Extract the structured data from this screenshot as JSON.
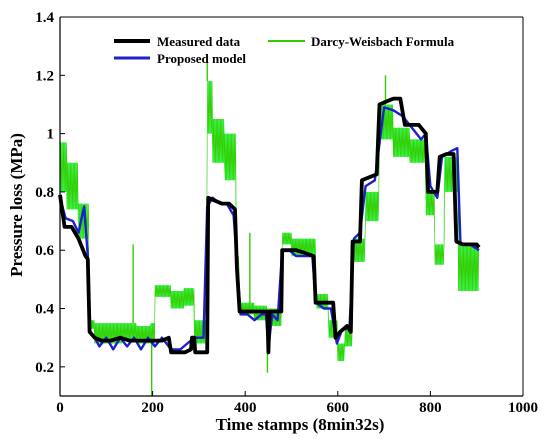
{
  "chart_data": {
    "type": "line",
    "xlabel": "Time stamps (8min32s)",
    "ylabel": "Pressure loss (MPa)",
    "xlim": [
      0,
      1000
    ],
    "ylim": [
      0.1,
      1.4
    ],
    "xticks": [
      0,
      200,
      400,
      600,
      800,
      1000
    ],
    "yticks": [
      0.2,
      0.4,
      0.6,
      0.8,
      1,
      1.2,
      1.4
    ],
    "grid": false,
    "legend_position": "top-center",
    "series": [
      {
        "name": "Darcy-Weisbach Formula",
        "color": "#33cc00",
        "band_color": "#00ff33",
        "steps": [
          [
            0,
            0.97,
            0.8
          ],
          [
            15,
            0.9,
            0.74
          ],
          [
            40,
            0.76,
            0.64
          ],
          [
            62,
            0.36,
            0.33
          ],
          [
            75,
            0.35,
            0.28
          ],
          [
            100,
            0.35,
            0.28
          ],
          [
            135,
            0.35,
            0.29
          ],
          [
            165,
            0.34,
            0.28
          ],
          [
            195,
            0.35,
            0.28
          ],
          [
            205,
            0.48,
            0.44
          ],
          [
            240,
            0.46,
            0.4
          ],
          [
            268,
            0.47,
            0.41
          ],
          [
            290,
            0.36,
            0.28
          ],
          [
            318,
            1.18,
            1.0
          ],
          [
            330,
            1.05,
            0.9
          ],
          [
            355,
            1.0,
            0.84
          ],
          [
            380,
            0.58,
            0.52
          ],
          [
            388,
            0.42,
            0.38
          ],
          [
            420,
            0.41,
            0.36
          ],
          [
            448,
            0.4,
            0.37
          ],
          [
            458,
            0.4,
            0.34
          ],
          [
            480,
            0.66,
            0.62
          ],
          [
            500,
            0.64,
            0.58
          ],
          [
            530,
            0.64,
            0.58
          ],
          [
            553,
            0.45,
            0.4
          ],
          [
            580,
            0.36,
            0.3
          ],
          [
            600,
            0.28,
            0.22
          ],
          [
            615,
            0.34,
            0.27
          ],
          [
            632,
            0.64,
            0.56
          ],
          [
            660,
            0.8,
            0.7
          ],
          [
            690,
            1.1,
            0.98
          ],
          [
            720,
            1.02,
            0.92
          ],
          [
            755,
            0.98,
            0.9
          ],
          [
            790,
            0.8,
            0.72
          ],
          [
            810,
            0.62,
            0.55
          ],
          [
            830,
            0.92,
            0.8
          ],
          [
            860,
            0.62,
            0.46
          ],
          [
            905,
            0.62,
            0.46
          ]
        ],
        "spikes": [
          [
            158,
            0.62
          ],
          [
            198,
            0.1
          ],
          [
            318,
            1.27
          ],
          [
            410,
            0.66
          ],
          [
            448,
            0.18
          ],
          [
            703,
            1.2
          ]
        ]
      },
      {
        "name": "Proposed model",
        "color": "#1f1fcc",
        "points": [
          [
            0,
            0.78
          ],
          [
            12,
            0.71
          ],
          [
            28,
            0.7
          ],
          [
            40,
            0.66
          ],
          [
            52,
            0.75
          ],
          [
            60,
            0.58
          ],
          [
            63,
            0.32
          ],
          [
            75,
            0.3
          ],
          [
            85,
            0.27
          ],
          [
            100,
            0.3
          ],
          [
            115,
            0.26
          ],
          [
            130,
            0.3
          ],
          [
            145,
            0.27
          ],
          [
            160,
            0.3
          ],
          [
            175,
            0.26
          ],
          [
            190,
            0.3
          ],
          [
            205,
            0.27
          ],
          [
            220,
            0.3
          ],
          [
            240,
            0.26
          ],
          [
            260,
            0.26
          ],
          [
            275,
            0.28
          ],
          [
            290,
            0.3
          ],
          [
            310,
            0.3
          ],
          [
            318,
            0.75
          ],
          [
            330,
            0.78
          ],
          [
            345,
            0.76
          ],
          [
            360,
            0.76
          ],
          [
            375,
            0.72
          ],
          [
            382,
            0.56
          ],
          [
            390,
            0.38
          ],
          [
            405,
            0.38
          ],
          [
            420,
            0.36
          ],
          [
            435,
            0.38
          ],
          [
            445,
            0.38
          ],
          [
            450,
            0.26
          ],
          [
            458,
            0.38
          ],
          [
            470,
            0.36
          ],
          [
            480,
            0.6
          ],
          [
            495,
            0.6
          ],
          [
            510,
            0.58
          ],
          [
            530,
            0.58
          ],
          [
            545,
            0.58
          ],
          [
            553,
            0.42
          ],
          [
            570,
            0.4
          ],
          [
            585,
            0.4
          ],
          [
            598,
            0.28
          ],
          [
            610,
            0.33
          ],
          [
            625,
            0.33
          ],
          [
            635,
            0.64
          ],
          [
            648,
            0.66
          ],
          [
            660,
            0.82
          ],
          [
            680,
            0.84
          ],
          [
            700,
            1.09
          ],
          [
            720,
            1.08
          ],
          [
            740,
            1.06
          ],
          [
            760,
            1.02
          ],
          [
            780,
            0.98
          ],
          [
            790,
            1.0
          ],
          [
            800,
            0.82
          ],
          [
            815,
            0.78
          ],
          [
            825,
            0.92
          ],
          [
            845,
            0.94
          ],
          [
            858,
            0.95
          ],
          [
            865,
            0.62
          ],
          [
            885,
            0.62
          ],
          [
            905,
            0.6
          ]
        ]
      },
      {
        "name": "Measured data",
        "color": "#000000",
        "points": [
          [
            0,
            0.79
          ],
          [
            10,
            0.68
          ],
          [
            25,
            0.68
          ],
          [
            40,
            0.64
          ],
          [
            55,
            0.58
          ],
          [
            60,
            0.57
          ],
          [
            64,
            0.32
          ],
          [
            75,
            0.3
          ],
          [
            90,
            0.29
          ],
          [
            110,
            0.29
          ],
          [
            130,
            0.3
          ],
          [
            150,
            0.29
          ],
          [
            170,
            0.29
          ],
          [
            190,
            0.29
          ],
          [
            205,
            0.29
          ],
          [
            220,
            0.29
          ],
          [
            235,
            0.3
          ],
          [
            240,
            0.25
          ],
          [
            255,
            0.25
          ],
          [
            270,
            0.25
          ],
          [
            283,
            0.26
          ],
          [
            285,
            0.3
          ],
          [
            290,
            0.3
          ],
          [
            292,
            0.25
          ],
          [
            300,
            0.25
          ],
          [
            318,
            0.25
          ],
          [
            320,
            0.78
          ],
          [
            335,
            0.77
          ],
          [
            350,
            0.76
          ],
          [
            365,
            0.76
          ],
          [
            378,
            0.74
          ],
          [
            382,
            0.54
          ],
          [
            388,
            0.39
          ],
          [
            400,
            0.39
          ],
          [
            420,
            0.39
          ],
          [
            440,
            0.39
          ],
          [
            448,
            0.39
          ],
          [
            450,
            0.25
          ],
          [
            453,
            0.39
          ],
          [
            470,
            0.39
          ],
          [
            478,
            0.39
          ],
          [
            480,
            0.6
          ],
          [
            495,
            0.6
          ],
          [
            510,
            0.6
          ],
          [
            530,
            0.59
          ],
          [
            548,
            0.58
          ],
          [
            552,
            0.42
          ],
          [
            565,
            0.42
          ],
          [
            580,
            0.42
          ],
          [
            590,
            0.42
          ],
          [
            595,
            0.3
          ],
          [
            605,
            0.32
          ],
          [
            620,
            0.34
          ],
          [
            628,
            0.32
          ],
          [
            632,
            0.63
          ],
          [
            648,
            0.63
          ],
          [
            652,
            0.84
          ],
          [
            668,
            0.85
          ],
          [
            684,
            0.86
          ],
          [
            690,
            1.1
          ],
          [
            705,
            1.11
          ],
          [
            720,
            1.12
          ],
          [
            735,
            1.12
          ],
          [
            745,
            1.03
          ],
          [
            760,
            1.03
          ],
          [
            775,
            1.03
          ],
          [
            790,
            1.0
          ],
          [
            795,
            0.8
          ],
          [
            808,
            0.8
          ],
          [
            815,
            0.8
          ],
          [
            820,
            0.92
          ],
          [
            835,
            0.93
          ],
          [
            850,
            0.93
          ],
          [
            856,
            0.63
          ],
          [
            870,
            0.62
          ],
          [
            885,
            0.62
          ],
          [
            900,
            0.62
          ],
          [
            905,
            0.61
          ]
        ]
      }
    ]
  }
}
